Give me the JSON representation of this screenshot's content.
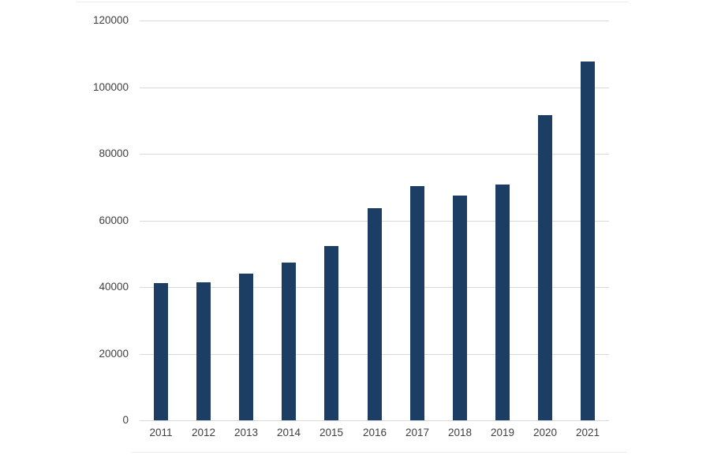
{
  "chart_data": {
    "type": "bar",
    "categories": [
      "2011",
      "2012",
      "2013",
      "2014",
      "2015",
      "2016",
      "2017",
      "2018",
      "2019",
      "2020",
      "2021"
    ],
    "values": [
      41200,
      41500,
      44000,
      47300,
      52400,
      63600,
      70300,
      67400,
      70800,
      91600,
      107800
    ],
    "title": "",
    "xlabel": "",
    "ylabel": "",
    "ylim": [
      0,
      120000
    ],
    "ytick_step": 20000,
    "ytick_labels": [
      "0",
      "20000",
      "40000",
      "60000",
      "80000",
      "100000",
      "120000"
    ],
    "grid": "horizontal-only",
    "legend": "none",
    "colors": {
      "bar": "#1c3e64",
      "gridline": "#d9d9d9",
      "axis_line": "#d9d9d9",
      "tick_label": "#3f3f3f",
      "background": "#ffffff"
    }
  }
}
